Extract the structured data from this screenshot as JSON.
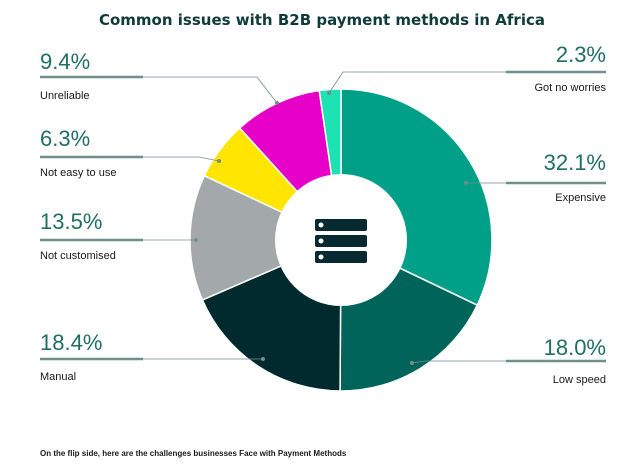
{
  "chart_data": {
    "type": "pie",
    "variant": "donut",
    "title": "Common issues with B2B payment methods in Africa",
    "footnote": "On the flip side, here are the challenges businesses Face with Payment Methods",
    "center_icon": "server-stack-icon",
    "slices": [
      {
        "label": "Expensive",
        "value": 32.1,
        "value_label": "32.1%",
        "color": "#00a088"
      },
      {
        "label": "Low speed",
        "value": 18.0,
        "value_label": "18.0%",
        "color": "#00645a"
      },
      {
        "label": "Manual",
        "value": 18.4,
        "value_label": "18.4%",
        "color": "#002a2e"
      },
      {
        "label": "Not customised",
        "value": 13.5,
        "value_label": "13.5%",
        "color": "#a3a8aa"
      },
      {
        "label": "Not easy to use",
        "value": 6.3,
        "value_label": "6.3%",
        "color": "#ffe500"
      },
      {
        "label": "Unreliable",
        "value": 9.4,
        "value_label": "9.4%",
        "color": "#e600c8"
      },
      {
        "label": "Got no worries",
        "value": 2.3,
        "value_label": "2.3%",
        "color": "#1de3b4"
      }
    ],
    "legend": "callouts"
  }
}
